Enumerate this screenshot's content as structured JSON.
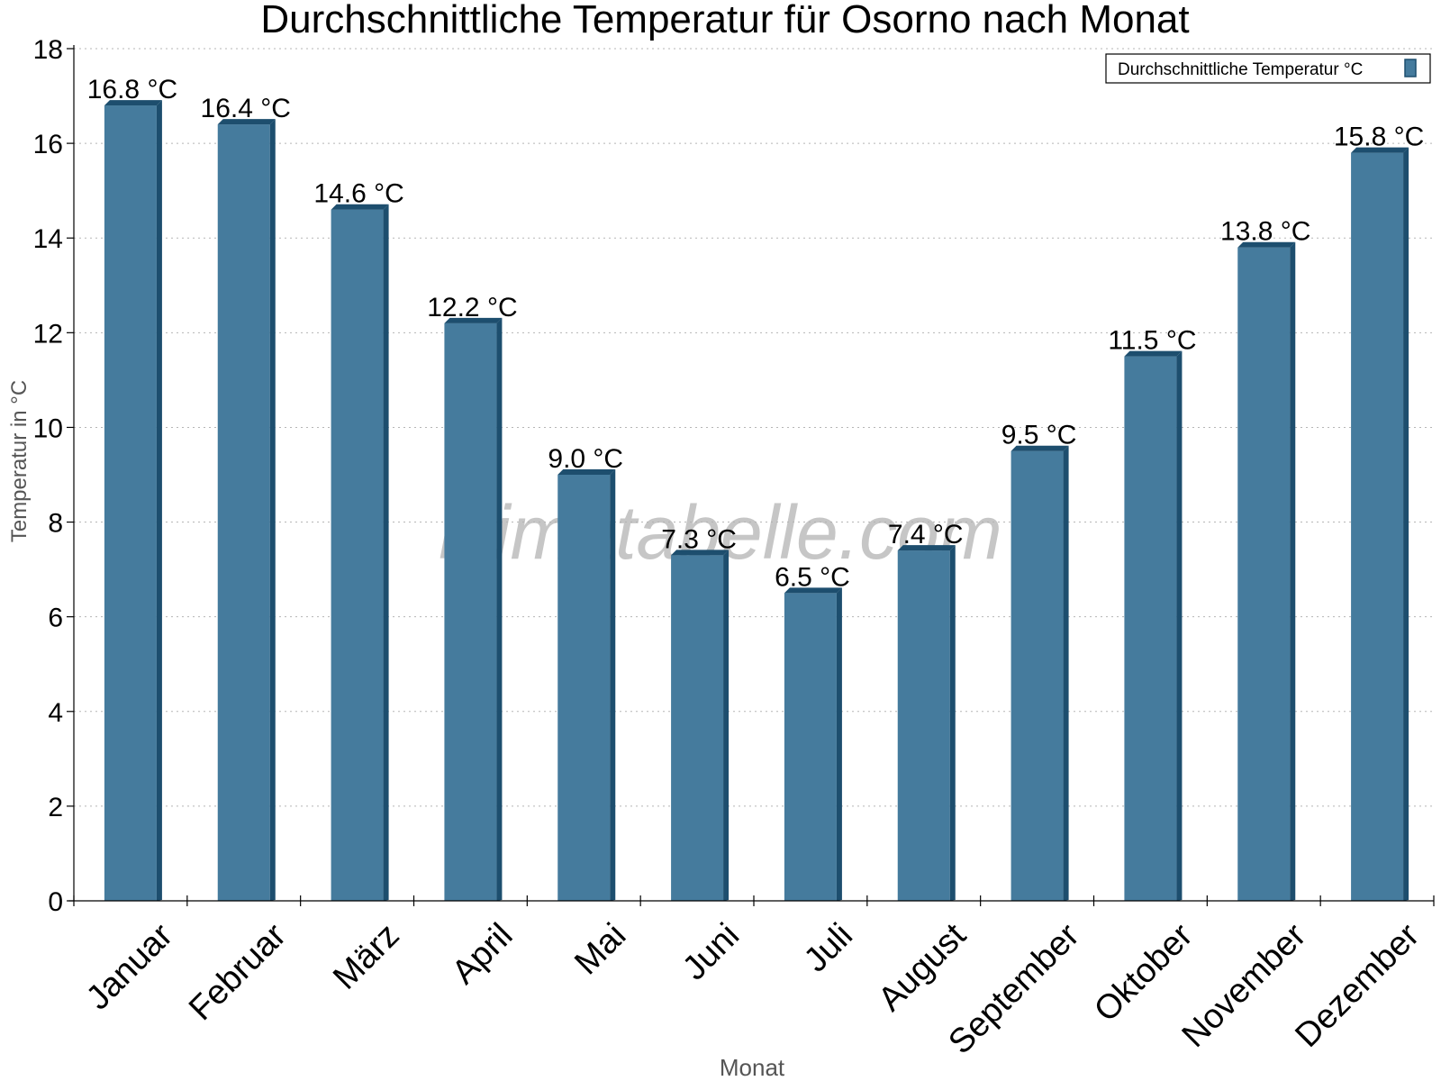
{
  "chart_data": {
    "type": "bar",
    "title": "Durchschnittliche Temperatur für Osorno nach Monat",
    "xlabel": "Monat",
    "ylabel": "Temperatur in °C",
    "categories": [
      "Januar",
      "Februar",
      "März",
      "April",
      "Mai",
      "Juni",
      "Juli",
      "August",
      "September",
      "Oktober",
      "November",
      "Dezember"
    ],
    "series": [
      {
        "name": "Durchschnittliche Temperatur °C",
        "values": [
          16.8,
          16.4,
          14.6,
          12.2,
          9.0,
          7.3,
          6.5,
          7.4,
          9.5,
          11.5,
          13.8,
          15.8
        ],
        "value_labels": [
          "16.8 °C",
          "16.4 °C",
          "14.6 °C",
          "12.2 °C",
          "9.0 °C",
          "7.3 °C",
          "6.5 °C",
          "7.4 °C",
          "9.5 °C",
          "11.5 °C",
          "13.8 °C",
          "15.8 °C"
        ],
        "color": "#457b9d",
        "edge_color": "#1d4e6e"
      }
    ],
    "ylim": [
      0,
      18
    ],
    "yticks": [
      0,
      2,
      4,
      6,
      8,
      10,
      12,
      14,
      16,
      18
    ],
    "grid": true,
    "legend_position": "top-right",
    "watermark": "klimatabelle.com"
  }
}
